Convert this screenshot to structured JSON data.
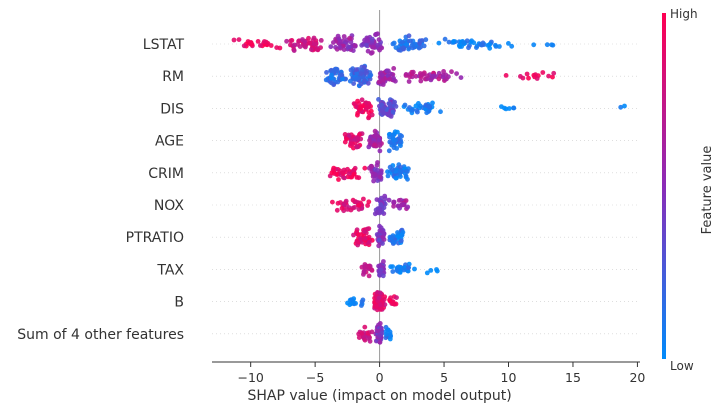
{
  "chart_data": {
    "type": "scatter",
    "subtype": "shap-beeswarm",
    "xlabel": "SHAP value (impact on model output)",
    "xlim": [
      -13,
      20.2
    ],
    "x_ticks": [
      -10,
      -5,
      0,
      5,
      10,
      15,
      20
    ],
    "colorbar": {
      "label": "Feature value",
      "high_label": "High",
      "low_label": "Low",
      "high_color": "#ff0052",
      "mid_color": "#8b2bb8",
      "low_color": "#008bfb"
    },
    "features": [
      {
        "name": "LSTAT",
        "min": -11.7,
        "max": 14.7,
        "clusters": [
          {
            "from": -11.7,
            "to": -7.5,
            "n": 26,
            "value": 0.95
          },
          {
            "from": -7.5,
            "to": -4.0,
            "n": 46,
            "value": 0.8
          },
          {
            "from": -4.0,
            "to": -1.5,
            "n": 40,
            "value": 0.55
          },
          {
            "from": -1.5,
            "to": 0.5,
            "n": 44,
            "value": 0.5
          },
          {
            "from": 0.5,
            "to": 4.0,
            "n": 56,
            "value": 0.15
          },
          {
            "from": 4.0,
            "to": 11.0,
            "n": 40,
            "value": 0.05
          },
          {
            "from": 11.0,
            "to": 14.7,
            "n": 4,
            "value": 0.0
          }
        ]
      },
      {
        "name": "RM",
        "min": -4.5,
        "max": 14.6,
        "clusters": [
          {
            "from": -4.5,
            "to": -2.5,
            "n": 40,
            "value": 0.15
          },
          {
            "from": -2.5,
            "to": -0.5,
            "n": 70,
            "value": 0.2
          },
          {
            "from": -0.5,
            "to": 1.5,
            "n": 38,
            "value": 0.55
          },
          {
            "from": 1.5,
            "to": 6.5,
            "n": 46,
            "value": 0.65
          },
          {
            "from": 9.0,
            "to": 14.6,
            "n": 14,
            "value": 0.95
          }
        ]
      },
      {
        "name": "DIS",
        "min": -2.2,
        "max": 19.0,
        "clusters": [
          {
            "from": -2.2,
            "to": -0.3,
            "n": 40,
            "value": 0.9
          },
          {
            "from": -0.3,
            "to": 1.5,
            "n": 56,
            "value": 0.35
          },
          {
            "from": 1.5,
            "to": 5.0,
            "n": 34,
            "value": 0.05
          },
          {
            "from": 6.5,
            "to": 12.5,
            "n": 6,
            "value": 0.0
          },
          {
            "from": 18.7,
            "to": 19.0,
            "n": 2,
            "value": 0.0
          }
        ]
      },
      {
        "name": "AGE",
        "min": -3.0,
        "max": 2.0,
        "clusters": [
          {
            "from": -3.0,
            "to": -1.0,
            "n": 36,
            "value": 0.85
          },
          {
            "from": -1.0,
            "to": 0.3,
            "n": 52,
            "value": 0.6
          },
          {
            "from": 0.3,
            "to": 2.0,
            "n": 36,
            "value": 0.1
          }
        ]
      },
      {
        "name": "CRIM",
        "min": -4.4,
        "max": 2.5,
        "clusters": [
          {
            "from": -4.4,
            "to": -1.0,
            "n": 38,
            "value": 0.9
          },
          {
            "from": -1.0,
            "to": 0.4,
            "n": 32,
            "value": 0.5
          },
          {
            "from": 0.4,
            "to": 2.5,
            "n": 40,
            "value": 0.1
          }
        ]
      },
      {
        "name": "NOX",
        "min": -4.0,
        "max": 2.5,
        "clusters": [
          {
            "from": -4.0,
            "to": -0.5,
            "n": 38,
            "value": 0.85
          },
          {
            "from": -0.5,
            "to": 0.6,
            "n": 34,
            "value": 0.4
          },
          {
            "from": 0.6,
            "to": 2.5,
            "n": 22,
            "value": 0.6
          }
        ]
      },
      {
        "name": "PTRATIO",
        "min": -2.2,
        "max": 2.3,
        "clusters": [
          {
            "from": -2.2,
            "to": -0.3,
            "n": 40,
            "value": 0.9
          },
          {
            "from": -0.3,
            "to": 0.5,
            "n": 36,
            "value": 0.45
          },
          {
            "from": 0.5,
            "to": 2.3,
            "n": 34,
            "value": 0.08
          }
        ]
      },
      {
        "name": "TAX",
        "min": -1.5,
        "max": 5.1,
        "clusters": [
          {
            "from": -1.5,
            "to": -0.2,
            "n": 20,
            "value": 0.7
          },
          {
            "from": -0.2,
            "to": 0.4,
            "n": 40,
            "value": 0.45
          },
          {
            "from": 0.4,
            "to": 3.2,
            "n": 26,
            "value": 0.05
          },
          {
            "from": 3.5,
            "to": 5.1,
            "n": 4,
            "value": 0.0
          }
        ]
      },
      {
        "name": "B",
        "min": -3.0,
        "max": 1.6,
        "clusters": [
          {
            "from": -3.0,
            "to": -0.6,
            "n": 14,
            "value": 0.05
          },
          {
            "from": -0.6,
            "to": 0.5,
            "n": 60,
            "value": 0.85
          },
          {
            "from": 0.5,
            "to": 1.6,
            "n": 14,
            "value": 0.9
          }
        ]
      },
      {
        "name": "Sum of 4 other features",
        "min": -1.8,
        "max": 1.1,
        "clusters": [
          {
            "from": -1.8,
            "to": -0.4,
            "n": 22,
            "value": 0.8
          },
          {
            "from": -0.4,
            "to": 0.3,
            "n": 46,
            "value": 0.45
          },
          {
            "from": 0.3,
            "to": 1.1,
            "n": 14,
            "value": 0.1
          }
        ]
      }
    ]
  }
}
